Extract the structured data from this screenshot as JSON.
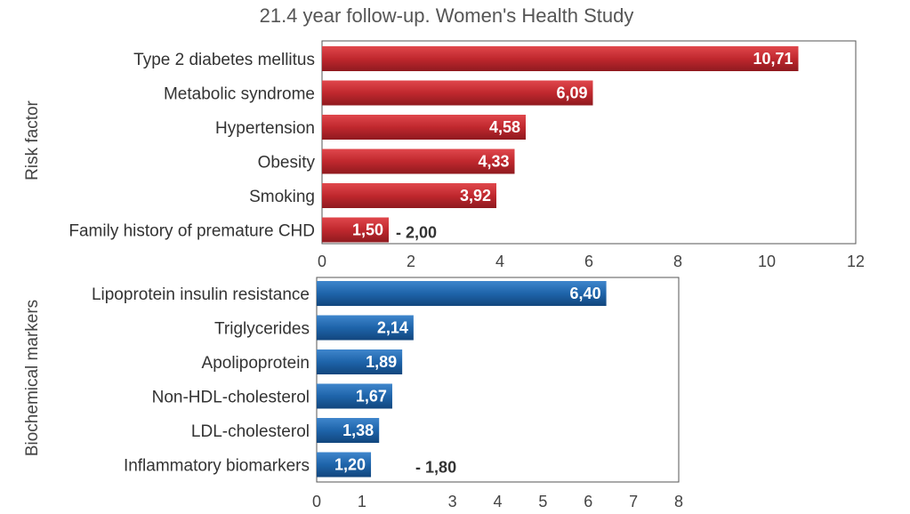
{
  "chart_data": [
    {
      "type": "bar",
      "orientation": "horizontal",
      "title": "21.4 year follow-up. Women's Health Study",
      "ylabel": "Risk factor",
      "xlim": [
        0,
        12
      ],
      "xticks": [
        "0",
        "2",
        "4",
        "6",
        "8",
        "10",
        "12"
      ],
      "color": "#c0282e",
      "categories": [
        "Type 2 diabetes mellitus",
        "Metabolic syndrome",
        "Hypertension",
        "Obesity",
        "Smoking",
        "Family history of premature CHD"
      ],
      "values": [
        10.71,
        6.09,
        4.58,
        4.33,
        3.92,
        1.5
      ],
      "value_labels": [
        "10,71",
        "6,09",
        "4,58",
        "4,33",
        "3,92",
        "1,50"
      ],
      "annotations": [
        {
          "category": "Family history of premature CHD",
          "text": "- 2,00"
        }
      ]
    },
    {
      "type": "bar",
      "orientation": "horizontal",
      "ylabel": "Biochemical markers",
      "xlim": [
        0,
        8
      ],
      "xticks": [
        "0",
        "1",
        "",
        "3",
        "4",
        "5",
        "6",
        "7",
        "8"
      ],
      "color": "#1e64aa",
      "categories": [
        "Lipoprotein insulin resistance",
        "Triglycerides",
        "Apolipoprotein",
        "Non-HDL-cholesterol",
        "LDL-cholesterol",
        "Inflammatory biomarkers"
      ],
      "values": [
        6.4,
        2.14,
        1.89,
        1.67,
        1.38,
        1.2
      ],
      "value_labels": [
        "6,40",
        "2,14",
        "1,89",
        "1,67",
        "1,38",
        "1,20"
      ],
      "annotations": [
        {
          "category": "Inflammatory biomarkers",
          "text": "- 1,80"
        }
      ]
    }
  ]
}
